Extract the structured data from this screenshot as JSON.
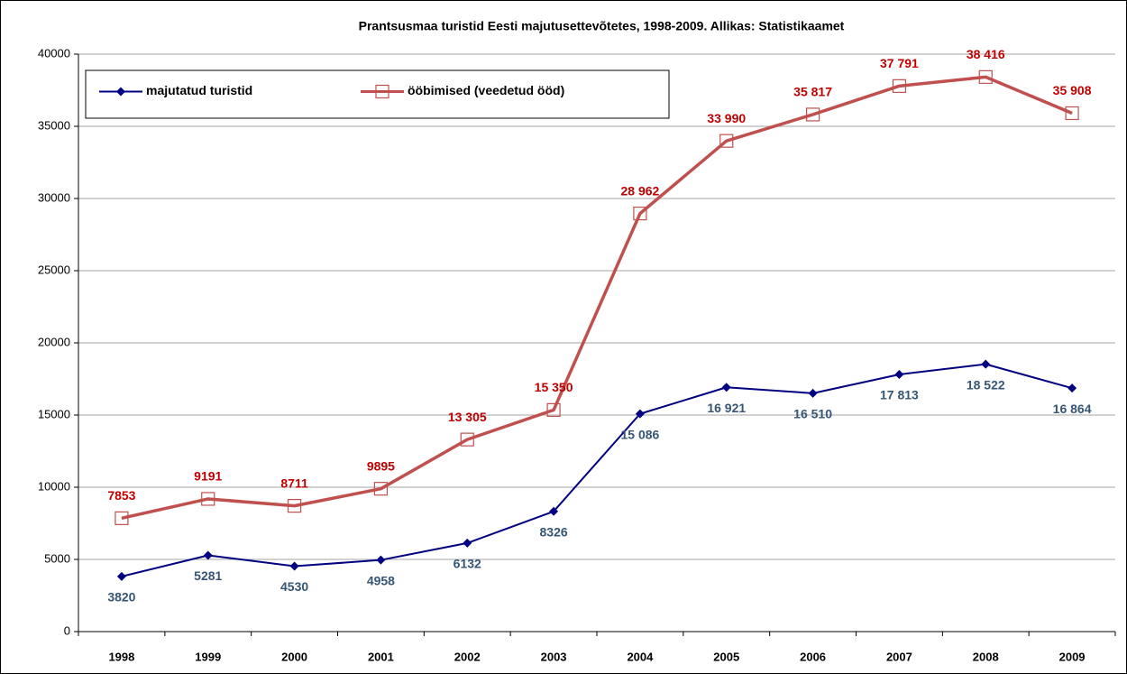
{
  "chart_data": {
    "type": "line",
    "title": "Prantsusmaa turistid Eesti majutusettevõtetes, 1998-2009. Allikas: Statistikaamet",
    "categories": [
      "1998",
      "1999",
      "2000",
      "2001",
      "2002",
      "2003",
      "2004",
      "2005",
      "2006",
      "2007",
      "2008",
      "2009"
    ],
    "series": [
      {
        "name": "majutatud turistid",
        "color": "#000080",
        "marker": "diamond",
        "label_color": "#375574",
        "label_position": "below",
        "values": [
          3820,
          5281,
          4530,
          4958,
          6132,
          8326,
          15086,
          16921,
          16510,
          17813,
          18522,
          16864
        ],
        "value_labels": [
          "3820",
          "5281",
          "4530",
          "4958",
          "6132",
          "8326",
          "15 086",
          "16 921",
          "16 510",
          "17 813",
          "18 522",
          "16 864"
        ]
      },
      {
        "name": "ööbimised (veedetud ööd)",
        "color": "#c0504d",
        "marker": "square",
        "label_color": "#c00000",
        "label_position": "above",
        "values": [
          7853,
          9191,
          8711,
          9895,
          13305,
          15350,
          28962,
          33990,
          35817,
          37791,
          38416,
          35908
        ],
        "value_labels": [
          "7853",
          "9191",
          "8711",
          "9895",
          "13 305",
          "15 350",
          "28 962",
          "33 990",
          "35 817",
          "37 791",
          "38 416",
          "35 908"
        ]
      }
    ],
    "ylim": [
      0,
      40000
    ],
    "yticks": [
      0,
      5000,
      10000,
      15000,
      20000,
      25000,
      30000,
      35000,
      40000
    ],
    "grid": true,
    "legend": "top-left"
  }
}
